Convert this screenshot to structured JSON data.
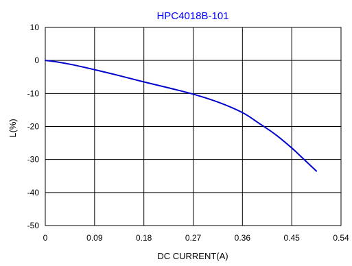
{
  "chart_data": {
    "type": "line",
    "title": "HPC4018B-101",
    "xlabel": "DC CURRENT(A)",
    "ylabel": "L(%)",
    "xlim": [
      0,
      0.54
    ],
    "ylim": [
      -50,
      10
    ],
    "xticks": [
      0,
      0.09,
      0.18,
      0.27,
      0.36,
      0.45,
      0.54
    ],
    "xtick_labels": [
      "0",
      "0.09",
      "0.18",
      "0.27",
      "0.36",
      "0.45",
      "0.54"
    ],
    "yticks": [
      10,
      0,
      -10,
      -20,
      -30,
      -40,
      -50
    ],
    "ytick_labels": [
      "10",
      "0",
      "-10",
      "-20",
      "-30",
      "-40",
      "-50"
    ],
    "grid": true,
    "legend": "none",
    "colors": {
      "title": "#0000ff",
      "line": "#0000d0",
      "grid": "#000000",
      "axes": "#000000"
    },
    "series": [
      {
        "x": [
          0,
          0.02,
          0.05,
          0.09,
          0.135,
          0.18,
          0.225,
          0.27,
          0.315,
          0.36,
          0.39,
          0.42,
          0.45,
          0.47,
          0.495
        ],
        "y": [
          0,
          -0.4,
          -1.3,
          -2.8,
          -4.6,
          -6.5,
          -8.3,
          -10.2,
          -12.6,
          -15.8,
          -19.0,
          -22.4,
          -26.5,
          -29.6,
          -33.5
        ]
      }
    ]
  }
}
